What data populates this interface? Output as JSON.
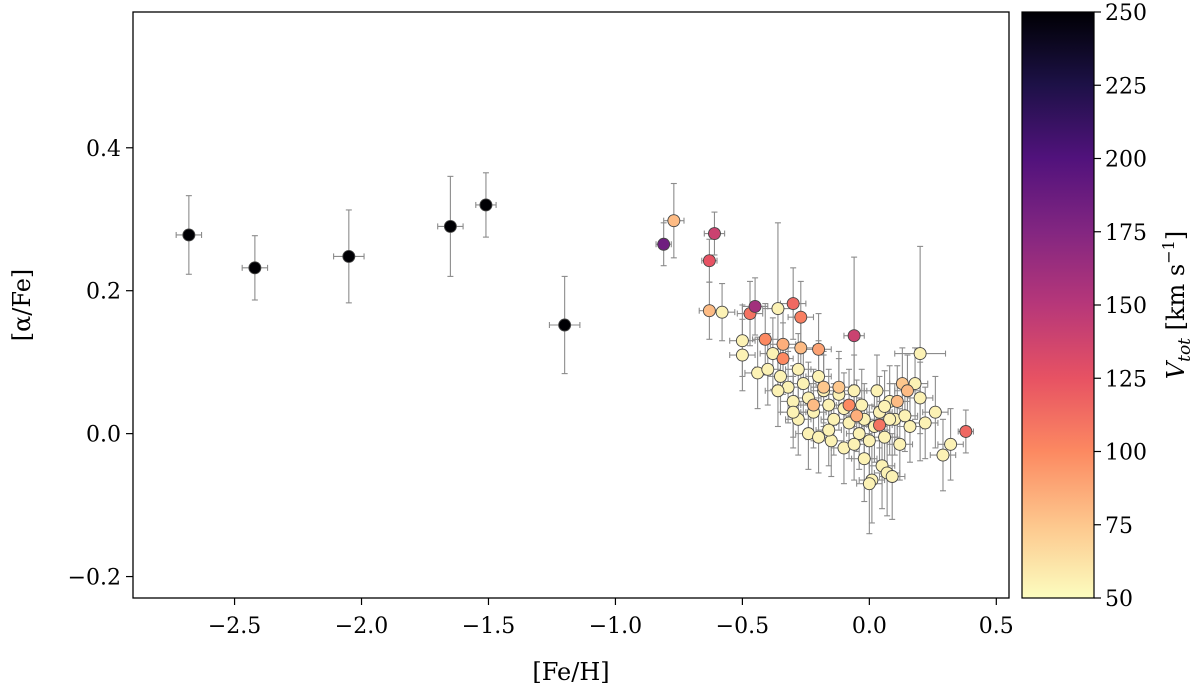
{
  "chart_data": {
    "type": "scatter",
    "title": "",
    "xlabel": "[Fe/H]",
    "ylabel": "[α/Fe]",
    "xlim": [
      -2.9,
      0.55
    ],
    "ylim": [
      -0.23,
      0.59
    ],
    "xticks": [
      -2.5,
      -2.0,
      -1.5,
      -1.0,
      -0.5,
      0.0,
      0.5
    ],
    "xtick_labels": [
      "−2.5",
      "−2.0",
      "−1.5",
      "−1.0",
      "−0.5",
      "0.0",
      "0.5"
    ],
    "yticks": [
      -0.2,
      0.0,
      0.2,
      0.4
    ],
    "ytick_labels": [
      "−0.2",
      "0.0",
      "0.2",
      "0.4"
    ],
    "grid": false,
    "colorbar": {
      "label": "V_tot [km s⁻¹]",
      "label_main": "V",
      "label_sub": "tot",
      "label_units": " [km s",
      "label_sup": "−1",
      "label_close": "]",
      "vmin": 50,
      "vmax": 250,
      "colormap": "magma",
      "ticks": [
        50,
        75,
        100,
        125,
        150,
        175,
        200,
        225,
        250
      ],
      "tick_labels": [
        "50",
        "75",
        "100",
        "125",
        "150",
        "175",
        "200",
        "225",
        "250"
      ]
    },
    "points": [
      {
        "x": -2.68,
        "y": 0.278,
        "v": 250,
        "xerr": 0.05,
        "yerr": 0.055
      },
      {
        "x": -2.42,
        "y": 0.232,
        "v": 250,
        "xerr": 0.05,
        "yerr": 0.045
      },
      {
        "x": -2.05,
        "y": 0.248,
        "v": 250,
        "xerr": 0.06,
        "yerr": 0.065
      },
      {
        "x": -1.65,
        "y": 0.29,
        "v": 250,
        "xerr": 0.05,
        "yerr": 0.07
      },
      {
        "x": -1.51,
        "y": 0.32,
        "v": 250,
        "xerr": 0.04,
        "yerr": 0.045
      },
      {
        "x": -1.2,
        "y": 0.152,
        "v": 250,
        "xerr": 0.06,
        "yerr": 0.068
      },
      {
        "x": -0.81,
        "y": 0.265,
        "v": 185,
        "xerr": 0.03,
        "yerr": 0.03
      },
      {
        "x": -0.77,
        "y": 0.298,
        "v": 80,
        "xerr": 0.04,
        "yerr": 0.052
      },
      {
        "x": -0.61,
        "y": 0.28,
        "v": 140,
        "xerr": 0.04,
        "yerr": 0.03
      },
      {
        "x": -0.63,
        "y": 0.242,
        "v": 125,
        "xerr": 0.03,
        "yerr": 0.03
      },
      {
        "x": -0.63,
        "y": 0.172,
        "v": 80,
        "xerr": 0.04,
        "yerr": 0.04
      },
      {
        "x": -0.58,
        "y": 0.17,
        "v": 55,
        "xerr": 0.05,
        "yerr": 0.04
      },
      {
        "x": -0.45,
        "y": 0.178,
        "v": 160,
        "xerr": 0.05,
        "yerr": 0.04
      },
      {
        "x": -0.47,
        "y": 0.168,
        "v": 110,
        "xerr": 0.05,
        "yerr": 0.045
      },
      {
        "x": -0.36,
        "y": 0.175,
        "v": 55,
        "xerr": 0.06,
        "yerr": 0.12
      },
      {
        "x": -0.3,
        "y": 0.182,
        "v": 115,
        "xerr": 0.05,
        "yerr": 0.05
      },
      {
        "x": -0.27,
        "y": 0.163,
        "v": 105,
        "xerr": 0.05,
        "yerr": 0.05
      },
      {
        "x": -0.06,
        "y": 0.137,
        "v": 140,
        "xerr": 0.04,
        "yerr": 0.11
      },
      {
        "x": 0.2,
        "y": 0.112,
        "v": 55,
        "xerr": 0.1,
        "yerr": 0.15
      },
      {
        "x": 0.38,
        "y": 0.003,
        "v": 115,
        "xerr": 0.03,
        "yerr": 0.03
      },
      {
        "x": -0.41,
        "y": 0.132,
        "v": 100,
        "xerr": 0.05,
        "yerr": 0.05
      },
      {
        "x": -0.34,
        "y": 0.125,
        "v": 85,
        "xerr": 0.05,
        "yerr": 0.05
      },
      {
        "x": -0.27,
        "y": 0.12,
        "v": 80,
        "xerr": 0.05,
        "yerr": 0.05
      },
      {
        "x": -0.2,
        "y": 0.118,
        "v": 90,
        "xerr": 0.05,
        "yerr": 0.05
      },
      {
        "x": -0.34,
        "y": 0.105,
        "v": 100,
        "xerr": 0.04,
        "yerr": 0.05
      },
      {
        "x": -0.5,
        "y": 0.13,
        "v": 55,
        "xerr": 0.05,
        "yerr": 0.05
      },
      {
        "x": -0.5,
        "y": 0.11,
        "v": 55,
        "xerr": 0.05,
        "yerr": 0.05
      },
      {
        "x": -0.44,
        "y": 0.085,
        "v": 55,
        "xerr": 0.05,
        "yerr": 0.05
      },
      {
        "x": -0.4,
        "y": 0.09,
        "v": 55,
        "xerr": 0.05,
        "yerr": 0.05
      },
      {
        "x": -0.38,
        "y": 0.112,
        "v": 55,
        "xerr": 0.05,
        "yerr": 0.05
      },
      {
        "x": -0.35,
        "y": 0.08,
        "v": 55,
        "xerr": 0.05,
        "yerr": 0.05
      },
      {
        "x": -0.32,
        "y": 0.065,
        "v": 55,
        "xerr": 0.05,
        "yerr": 0.05
      },
      {
        "x": -0.3,
        "y": 0.045,
        "v": 55,
        "xerr": 0.05,
        "yerr": 0.05
      },
      {
        "x": -0.28,
        "y": 0.09,
        "v": 55,
        "xerr": 0.05,
        "yerr": 0.05
      },
      {
        "x": -0.26,
        "y": 0.07,
        "v": 55,
        "xerr": 0.05,
        "yerr": 0.05
      },
      {
        "x": -0.24,
        "y": 0.05,
        "v": 55,
        "xerr": 0.05,
        "yerr": 0.05
      },
      {
        "x": -0.22,
        "y": 0.03,
        "v": 55,
        "xerr": 0.05,
        "yerr": 0.05
      },
      {
        "x": -0.2,
        "y": 0.08,
        "v": 55,
        "xerr": 0.05,
        "yerr": 0.05
      },
      {
        "x": -0.18,
        "y": 0.06,
        "v": 55,
        "xerr": 0.05,
        "yerr": 0.05
      },
      {
        "x": -0.16,
        "y": 0.04,
        "v": 55,
        "xerr": 0.05,
        "yerr": 0.05
      },
      {
        "x": -0.14,
        "y": 0.02,
        "v": 55,
        "xerr": 0.05,
        "yerr": 0.05
      },
      {
        "x": -0.12,
        "y": 0.055,
        "v": 55,
        "xerr": 0.05,
        "yerr": 0.05
      },
      {
        "x": -0.1,
        "y": 0.035,
        "v": 55,
        "xerr": 0.05,
        "yerr": 0.05
      },
      {
        "x": -0.08,
        "y": 0.015,
        "v": 55,
        "xerr": 0.05,
        "yerr": 0.05
      },
      {
        "x": -0.06,
        "y": 0.06,
        "v": 55,
        "xerr": 0.05,
        "yerr": 0.05
      },
      {
        "x": -0.04,
        "y": 0.0,
        "v": 55,
        "xerr": 0.05,
        "yerr": 0.05
      },
      {
        "x": -0.02,
        "y": 0.02,
        "v": 55,
        "xerr": 0.05,
        "yerr": 0.05
      },
      {
        "x": 0.0,
        "y": -0.01,
        "v": 55,
        "xerr": 0.05,
        "yerr": 0.05
      },
      {
        "x": 0.02,
        "y": 0.01,
        "v": 55,
        "xerr": 0.05,
        "yerr": 0.05
      },
      {
        "x": 0.04,
        "y": 0.03,
        "v": 55,
        "xerr": 0.05,
        "yerr": 0.05
      },
      {
        "x": 0.06,
        "y": -0.005,
        "v": 55,
        "xerr": 0.05,
        "yerr": 0.05
      },
      {
        "x": 0.08,
        "y": 0.045,
        "v": 55,
        "xerr": 0.05,
        "yerr": 0.05
      },
      {
        "x": 0.1,
        "y": 0.02,
        "v": 55,
        "xerr": 0.05,
        "yerr": 0.05
      },
      {
        "x": 0.12,
        "y": -0.015,
        "v": 55,
        "xerr": 0.05,
        "yerr": 0.05
      },
      {
        "x": 0.16,
        "y": 0.01,
        "v": 55,
        "xerr": 0.05,
        "yerr": 0.05
      },
      {
        "x": 0.22,
        "y": 0.015,
        "v": 55,
        "xerr": 0.05,
        "yerr": 0.05
      },
      {
        "x": 0.26,
        "y": 0.03,
        "v": 55,
        "xerr": 0.05,
        "yerr": 0.05
      },
      {
        "x": 0.29,
        "y": -0.03,
        "v": 55,
        "xerr": 0.05,
        "yerr": 0.05
      },
      {
        "x": 0.32,
        "y": -0.015,
        "v": 55,
        "xerr": 0.05,
        "yerr": 0.05
      },
      {
        "x": -0.02,
        "y": -0.035,
        "v": 55,
        "xerr": 0.05,
        "yerr": 0.06
      },
      {
        "x": 0.05,
        "y": -0.045,
        "v": 55,
        "xerr": 0.05,
        "yerr": 0.06
      },
      {
        "x": 0.07,
        "y": -0.055,
        "v": 55,
        "xerr": 0.05,
        "yerr": 0.06
      },
      {
        "x": 0.01,
        "y": -0.065,
        "v": 55,
        "xerr": 0.05,
        "yerr": 0.06
      },
      {
        "x": 0.0,
        "y": -0.07,
        "v": 55,
        "xerr": 0.05,
        "yerr": 0.07
      },
      {
        "x": 0.09,
        "y": -0.06,
        "v": 55,
        "xerr": 0.05,
        "yerr": 0.06
      },
      {
        "x": -0.28,
        "y": 0.02,
        "v": 55,
        "xerr": 0.05,
        "yerr": 0.05
      },
      {
        "x": -0.24,
        "y": 0.0,
        "v": 55,
        "xerr": 0.05,
        "yerr": 0.05
      },
      {
        "x": -0.2,
        "y": -0.005,
        "v": 55,
        "xerr": 0.05,
        "yerr": 0.05
      },
      {
        "x": -0.15,
        "y": -0.01,
        "v": 55,
        "xerr": 0.05,
        "yerr": 0.05
      },
      {
        "x": -0.1,
        "y": -0.02,
        "v": 55,
        "xerr": 0.05,
        "yerr": 0.05
      },
      {
        "x": -0.06,
        "y": -0.015,
        "v": 55,
        "xerr": 0.05,
        "yerr": 0.05
      },
      {
        "x": -0.03,
        "y": 0.04,
        "v": 55,
        "xerr": 0.05,
        "yerr": 0.05
      },
      {
        "x": 0.03,
        "y": 0.06,
        "v": 55,
        "xerr": 0.05,
        "yerr": 0.05
      },
      {
        "x": 0.14,
        "y": 0.025,
        "v": 55,
        "xerr": 0.05,
        "yerr": 0.05
      },
      {
        "x": 0.18,
        "y": 0.07,
        "v": 55,
        "xerr": 0.05,
        "yerr": 0.05
      },
      {
        "x": 0.2,
        "y": 0.05,
        "v": 55,
        "xerr": 0.05,
        "yerr": 0.05
      },
      {
        "x": -0.36,
        "y": 0.06,
        "v": 55,
        "xerr": 0.05,
        "yerr": 0.05
      },
      {
        "x": -0.3,
        "y": 0.03,
        "v": 55,
        "xerr": 0.05,
        "yerr": 0.05
      },
      {
        "x": -0.16,
        "y": 0.005,
        "v": 55,
        "xerr": 0.05,
        "yerr": 0.05
      },
      {
        "x": -0.12,
        "y": 0.065,
        "v": 75,
        "xerr": 0.05,
        "yerr": 0.05
      },
      {
        "x": -0.08,
        "y": 0.04,
        "v": 100,
        "xerr": 0.05,
        "yerr": 0.05
      },
      {
        "x": -0.05,
        "y": 0.025,
        "v": 85,
        "xerr": 0.05,
        "yerr": 0.05
      },
      {
        "x": 0.04,
        "y": 0.012,
        "v": 110,
        "xerr": 0.05,
        "yerr": 0.05
      },
      {
        "x": 0.13,
        "y": 0.07,
        "v": 75,
        "xerr": 0.05,
        "yerr": 0.05
      },
      {
        "x": 0.15,
        "y": 0.06,
        "v": 80,
        "xerr": 0.05,
        "yerr": 0.05
      },
      {
        "x": 0.11,
        "y": 0.045,
        "v": 80,
        "xerr": 0.05,
        "yerr": 0.05
      },
      {
        "x": -0.22,
        "y": 0.04,
        "v": 80,
        "xerr": 0.05,
        "yerr": 0.05
      },
      {
        "x": -0.18,
        "y": 0.065,
        "v": 75,
        "xerr": 0.05,
        "yerr": 0.05
      },
      {
        "x": 0.06,
        "y": 0.038,
        "v": 55,
        "xerr": 0.05,
        "yerr": 0.05
      },
      {
        "x": 0.08,
        "y": 0.02,
        "v": 55,
        "xerr": 0.05,
        "yerr": 0.05
      }
    ]
  }
}
